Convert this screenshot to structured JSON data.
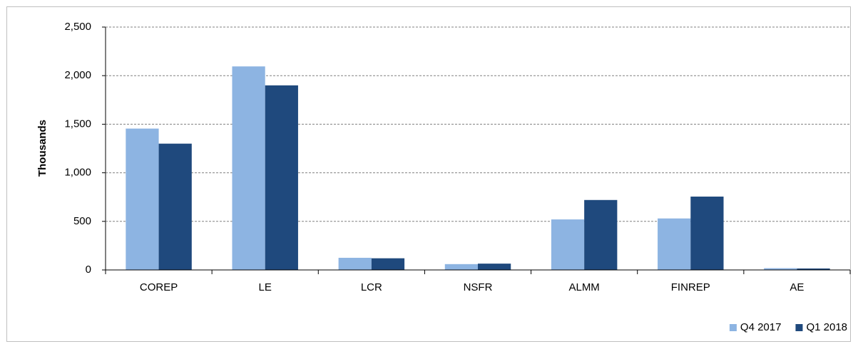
{
  "chart_data": {
    "type": "bar",
    "y_label": "Thousands",
    "categories": [
      "COREP",
      "LE",
      "LCR",
      "NSFR",
      "ALMM",
      "FINREP",
      "AE"
    ],
    "series": [
      {
        "name": "Q4 2017",
        "color": "#8db4e2",
        "values": [
          1455,
          2095,
          125,
          60,
          520,
          530,
          18
        ]
      },
      {
        "name": "Q1 2018",
        "color": "#1f497d",
        "values": [
          1300,
          1900,
          120,
          65,
          720,
          755,
          15
        ]
      }
    ],
    "ylim": [
      0,
      2500
    ],
    "yticks": [
      0,
      500,
      {
        "value": 1000,
        "label": "1,000"
      },
      {
        "value": 1500,
        "label": "1,500"
      },
      {
        "value": 2000,
        "label": "2,000"
      },
      {
        "value": 2500,
        "label": "2,500"
      }
    ],
    "grid": true,
    "legend": "bottom-right"
  }
}
